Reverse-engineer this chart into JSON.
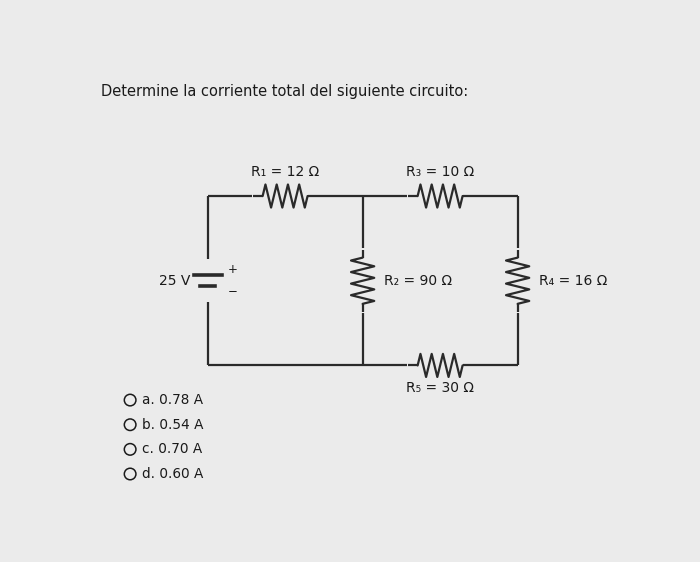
{
  "title": "Determine la corriente total del siguiente circuito:",
  "title_fontsize": 10.5,
  "bg_color": "#ebebeb",
  "R1_label": "R₁ = 12 Ω",
  "R2_label": "R₂ = 90 Ω",
  "R3_label": "R₃ = 10 Ω",
  "R4_label": "R₄ = 16 Ω",
  "R5_label": "R₅ = 30 Ω",
  "voltage_label": "25 V",
  "options": [
    "a. 0.78 A",
    "b. 0.54 A",
    "c. 0.70 A",
    "d. 0.60 A"
  ],
  "line_color": "#2a2a2a",
  "text_color": "#1a1a1a",
  "lw": 1.6
}
